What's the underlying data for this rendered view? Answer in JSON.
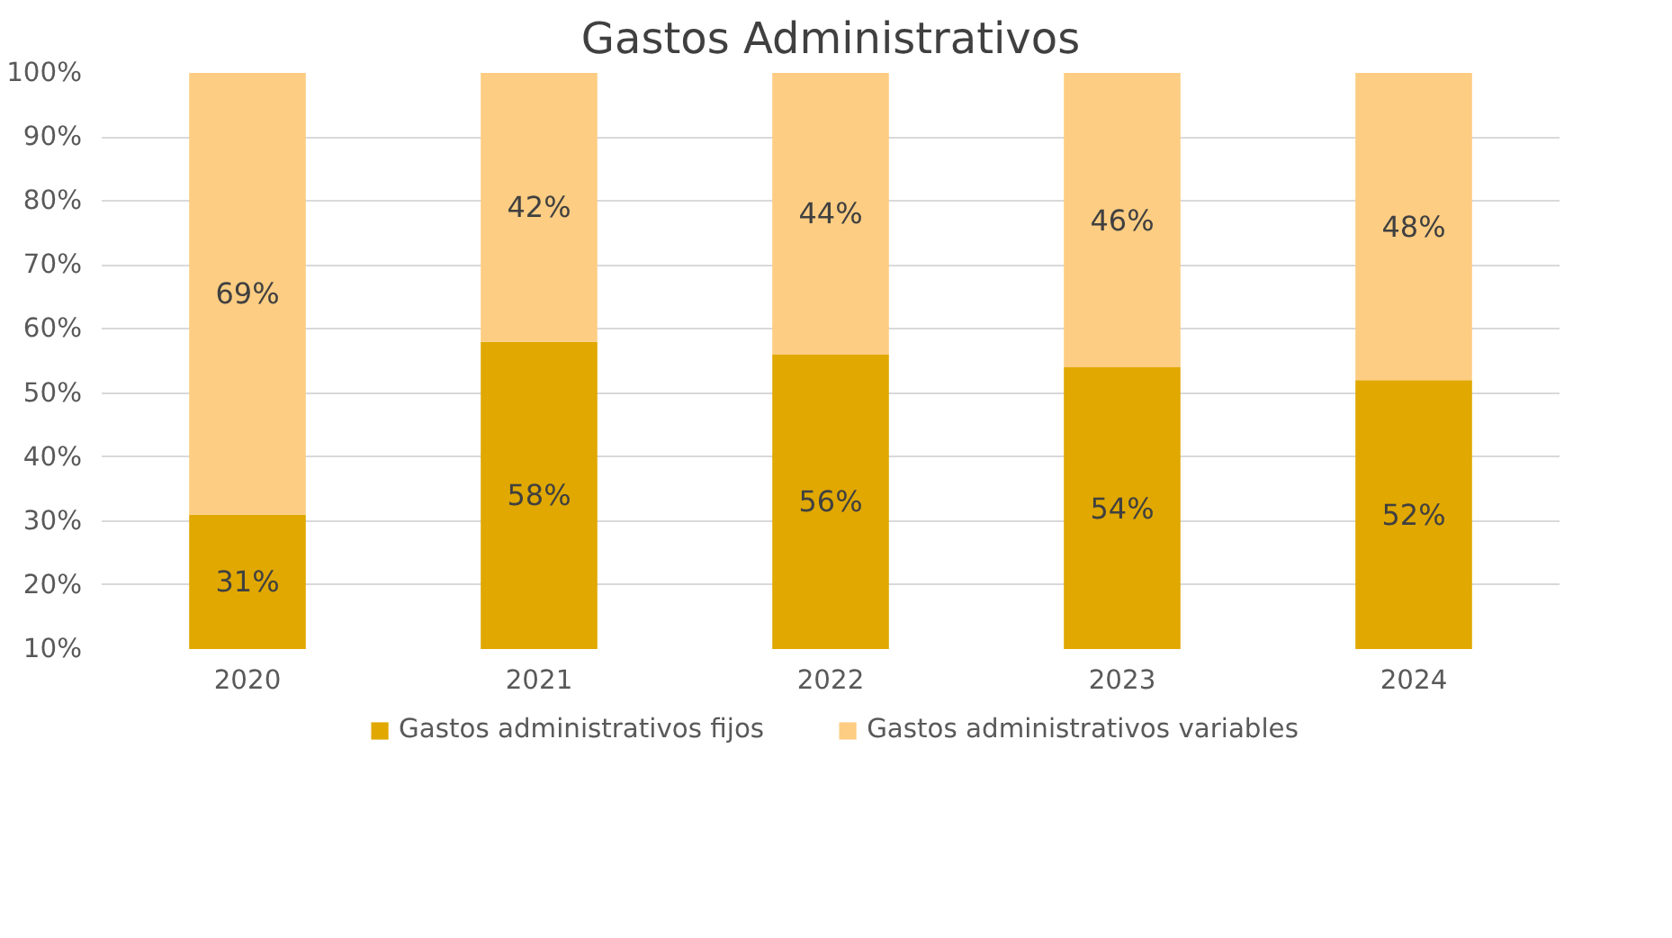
{
  "chart_data": {
    "type": "bar",
    "title": "Gastos Administrativos",
    "stacked": true,
    "categories": [
      "2020",
      "2021",
      "2022",
      "2023",
      "2024"
    ],
    "series": [
      {
        "name": "Gastos administrativos fijos",
        "color": "#e0a800",
        "values": [
          0.31,
          0.58,
          0.56,
          0.54,
          0.52
        ],
        "value_labels": [
          "31%",
          "58%",
          "56%",
          "54%",
          "52%"
        ]
      },
      {
        "name": "Gastos administrativos variables",
        "color": "#fdcd83",
        "values": [
          0.69,
          0.42,
          0.44,
          0.46,
          0.48
        ],
        "value_labels": [
          "69%",
          "42%",
          "44%",
          "46%",
          "48%"
        ]
      }
    ],
    "ylim": [
      0.1,
      1
    ],
    "yticks": [
      {
        "value": 0.1,
        "label": "10%"
      },
      {
        "value": 0.2,
        "label": "20%"
      },
      {
        "value": 0.3,
        "label": "30%"
      },
      {
        "value": 0.4,
        "label": "40%"
      },
      {
        "value": 0.5,
        "label": "50%"
      },
      {
        "value": 0.6,
        "label": "60%"
      },
      {
        "value": 0.7,
        "label": "70%"
      },
      {
        "value": 0.8,
        "label": "80%"
      },
      {
        "value": 0.9,
        "label": "90%"
      },
      {
        "value": 1,
        "label": "100%"
      }
    ],
    "grid": "y",
    "legend": "bottom"
  }
}
